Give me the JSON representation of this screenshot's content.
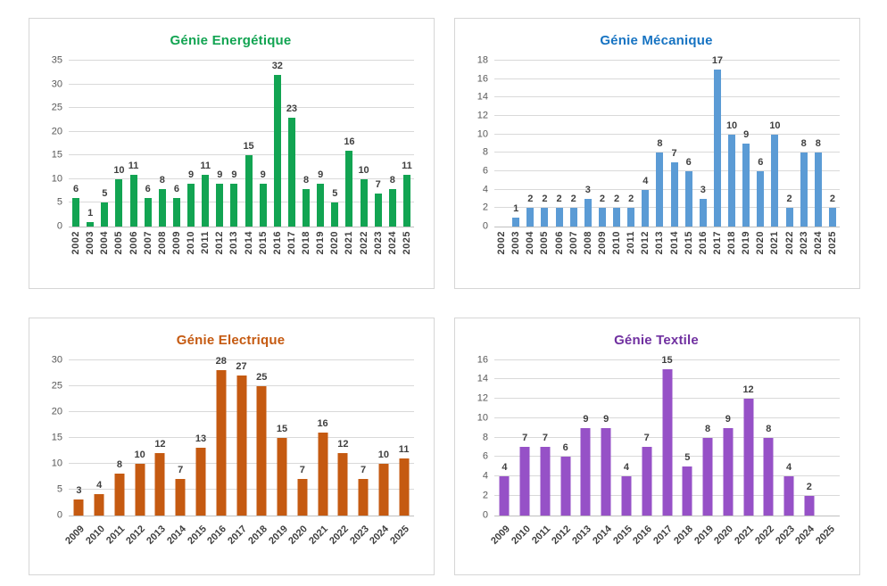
{
  "page": {
    "background": "#ffffff",
    "grid_color": "#d9d9d9",
    "axis_color": "#bfbfbf",
    "tick_text_color": "#595959",
    "label_text_color": "#3f3f3f",
    "panel_border_color": "#d6d6d6"
  },
  "chart_data": [
    {
      "type": "bar",
      "title": "Génie Energétique",
      "title_color": "#12a452",
      "bar_color": "#12a452",
      "categories": [
        "2002",
        "2003",
        "2004",
        "2005",
        "2006",
        "2007",
        "2008",
        "2009",
        "2010",
        "2011",
        "2012",
        "2013",
        "2014",
        "2015",
        "2016",
        "2017",
        "2018",
        "2019",
        "2020",
        "2021",
        "2022",
        "2023",
        "2024",
        "2025"
      ],
      "values": [
        6,
        1,
        5,
        10,
        11,
        6,
        8,
        6,
        9,
        11,
        9,
        9,
        15,
        9,
        32,
        23,
        8,
        9,
        5,
        16,
        10,
        7,
        8,
        11
      ],
      "xlabel": "",
      "ylabel": "",
      "ylim": [
        0,
        35
      ],
      "ytick_step": 5,
      "ytick_labels": [
        "0",
        "5",
        "10",
        "15",
        "20",
        "25",
        "30",
        "35"
      ],
      "xlabel_rotation": -90,
      "grid": true,
      "legend": false
    },
    {
      "type": "bar",
      "title": "Génie Mécanique",
      "title_color": "#1673c2",
      "bar_color": "#5b9bd5",
      "categories": [
        "2002",
        "2003",
        "2004",
        "2005",
        "2006",
        "2007",
        "2008",
        "2009",
        "2010",
        "2011",
        "2012",
        "2013",
        "2014",
        "2015",
        "2016",
        "2017",
        "2018",
        "2019",
        "2020",
        "2021",
        "2022",
        "2023",
        "2024",
        "2025"
      ],
      "values": [
        null,
        1,
        2,
        2,
        2,
        2,
        3,
        2,
        2,
        2,
        4,
        8,
        7,
        6,
        3,
        17,
        10,
        9,
        6,
        10,
        2,
        8,
        8,
        2
      ],
      "xlabel": "",
      "ylabel": "",
      "ylim": [
        0,
        18
      ],
      "ytick_step": 2,
      "ytick_labels": [
        "0",
        "2",
        "4",
        "6",
        "8",
        "10",
        "12",
        "14",
        "16",
        "18"
      ],
      "xlabel_rotation": -90,
      "grid": true,
      "legend": false
    },
    {
      "type": "bar",
      "title": "Génie Electrique",
      "title_color": "#c55a11",
      "bar_color": "#c55a11",
      "categories": [
        "2009",
        "2010",
        "2011",
        "2012",
        "2013",
        "2014",
        "2015",
        "2016",
        "2017",
        "2018",
        "2019",
        "2020",
        "2021",
        "2022",
        "2023",
        "2024",
        "2025"
      ],
      "values": [
        3,
        4,
        8,
        10,
        12,
        7,
        13,
        28,
        27,
        25,
        15,
        7,
        16,
        12,
        7,
        10,
        11
      ],
      "xlabel": "",
      "ylabel": "",
      "ylim": [
        0,
        30
      ],
      "ytick_step": 5,
      "ytick_labels": [
        "0",
        "5",
        "10",
        "15",
        "20",
        "25",
        "30"
      ],
      "xlabel_rotation": -45,
      "grid": true,
      "legend": false
    },
    {
      "type": "bar",
      "title": "Génie Textile",
      "title_color": "#7030a0",
      "bar_color": "#9651c7",
      "categories": [
        "2009",
        "2010",
        "2011",
        "2012",
        "2013",
        "2014",
        "2015",
        "2016",
        "2017",
        "2018",
        "2019",
        "2020",
        "2021",
        "2022",
        "2023",
        "2024",
        "2025"
      ],
      "values": [
        4,
        7,
        7,
        6,
        9,
        9,
        4,
        7,
        15,
        5,
        8,
        9,
        12,
        8,
        4,
        2,
        null
      ],
      "xlabel": "",
      "ylabel": "",
      "ylim": [
        0,
        16
      ],
      "ytick_step": 2,
      "ytick_labels": [
        "0",
        "2",
        "4",
        "6",
        "8",
        "10",
        "12",
        "14",
        "16"
      ],
      "xlabel_rotation": -45,
      "grid": true,
      "legend": false
    }
  ]
}
